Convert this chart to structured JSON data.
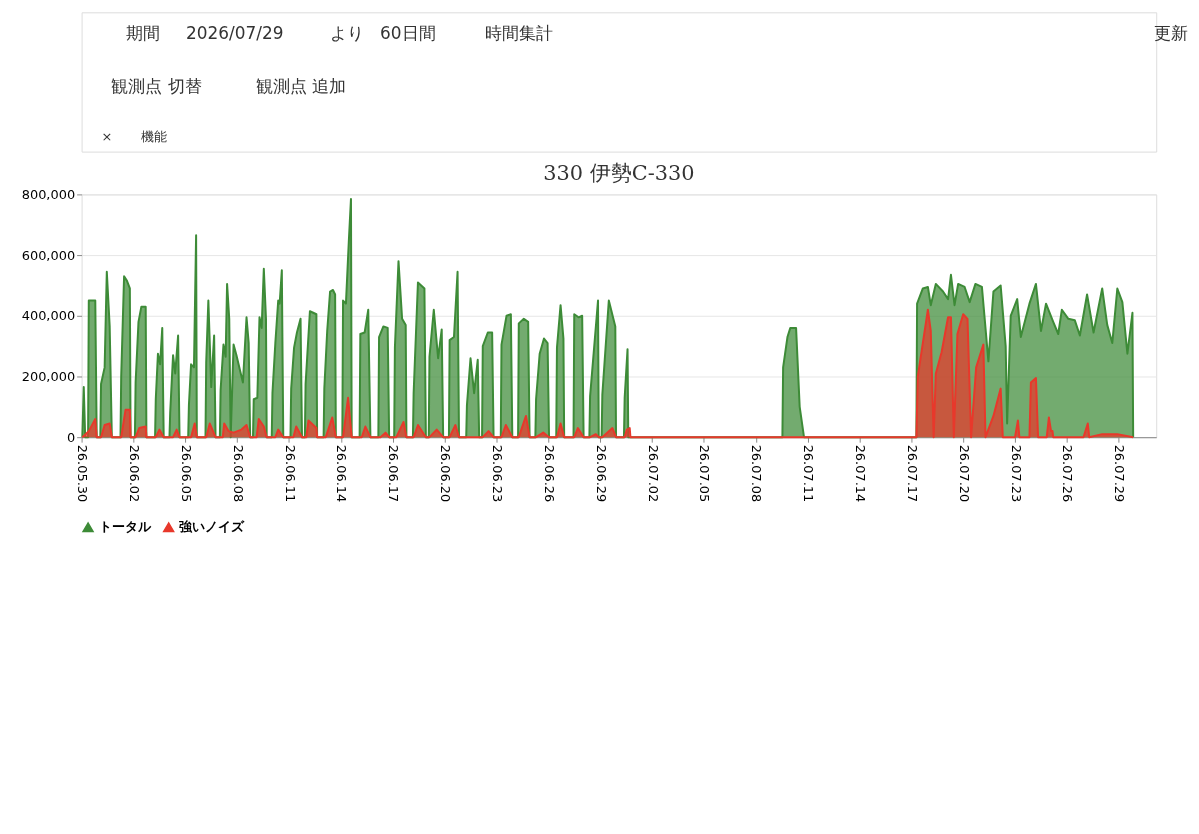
{
  "chart_data": [
    {
      "type": "other",
      "annotations": [
        "期間",
        "2026/07/29",
        "より",
        "60日間",
        "時間集計",
        "更新",
        "観測点 切替",
        "観測点 追加",
        "×",
        "機能"
      ]
    },
    {
      "type": "area",
      "title": "330 伊勢C-330",
      "legend": "bottom",
      "grid": "y",
      "xlim": [
        "2026-05-30",
        "2026-07-31T04:00"
      ],
      "xticks": [
        {
          "value": "2026-05-30",
          "label": "26.05.30"
        },
        {
          "value": "2026-06-02",
          "label": "26.06.02"
        },
        {
          "value": "2026-06-05",
          "label": "26.06.05"
        },
        {
          "value": "2026-06-08",
          "label": "26.06.08"
        },
        {
          "value": "2026-06-11",
          "label": "26.06.11"
        },
        {
          "value": "2026-06-14",
          "label": "26.06.14"
        },
        {
          "value": "2026-06-17",
          "label": "26.06.17"
        },
        {
          "value": "2026-06-20",
          "label": "26.06.20"
        },
        {
          "value": "2026-06-23",
          "label": "26.06.23"
        },
        {
          "value": "2026-06-26",
          "label": "26.06.26"
        },
        {
          "value": "2026-06-29",
          "label": "26.06.29"
        },
        {
          "value": "2026-07-02",
          "label": "26.07.02"
        },
        {
          "value": "2026-07-05",
          "label": "26.07.05"
        },
        {
          "value": "2026-07-08",
          "label": "26.07.08"
        },
        {
          "value": "2026-07-11",
          "label": "26.07.11"
        },
        {
          "value": "2026-07-14",
          "label": "26.07.14"
        },
        {
          "value": "2026-07-17",
          "label": "26.07.17"
        },
        {
          "value": "2026-07-20",
          "label": "26.07.20"
        },
        {
          "value": "2026-07-23",
          "label": "26.07.23"
        },
        {
          "value": "2026-07-26",
          "label": "26.07.26"
        },
        {
          "value": "2026-07-29",
          "label": "26.07.29"
        }
      ],
      "ylim": [
        0,
        800000
      ],
      "yticks": [
        0,
        {
          "value": 200000,
          "label": "200,000"
        },
        {
          "value": 400000,
          "label": "400,000"
        },
        {
          "value": 600000,
          "label": "600,000"
        },
        {
          "value": 800000,
          "label": "800,000"
        }
      ],
      "series": [
        {
          "name": "トータル",
          "color": "#3d8b37",
          "x": [
            "2026-05-30T01:00",
            "2026-05-30T03:00",
            "2026-05-30T05:00",
            "2026-05-30T09:00",
            "2026-05-30T10:00",
            "2026-05-30T19:00",
            "2026-05-30T21:00",
            "2026-05-31T02:00",
            "2026-05-31T03:00",
            "2026-05-31T08:00",
            "2026-05-31T11:00",
            "2026-05-31T15:00",
            "2026-05-31T18:00",
            "2026-06-01T06:00",
            "2026-06-01T07:00",
            "2026-06-01T11:00",
            "2026-06-01T15:00",
            "2026-06-01T19:00",
            "2026-06-01T20:00",
            "2026-06-02T02:00",
            "2026-06-02T03:00",
            "2026-06-02T07:00",
            "2026-06-02T11:00",
            "2026-06-02T17:00",
            "2026-06-02T18:00",
            "2026-06-03T06:00",
            "2026-06-03T07:00",
            "2026-06-03T10:00",
            "2026-06-03T13:00",
            "2026-06-03T16:00",
            "2026-06-03T18:00",
            "2026-06-04T02:00",
            "2026-06-04T03:00",
            "2026-06-04T07:00",
            "2026-06-04T10:00",
            "2026-06-04T14:00",
            "2026-06-04T16:00",
            "2026-06-05T04:00",
            "2026-06-05T05:00",
            "2026-06-05T08:00",
            "2026-06-05T12:00",
            "2026-06-05T15:00",
            "2026-06-05T16:00",
            "2026-06-06T04:00",
            "2026-06-06T05:00",
            "2026-06-06T08:00",
            "2026-06-06T12:00",
            "2026-06-06T16:00",
            "2026-06-06T18:00",
            "2026-06-07T00:00",
            "2026-06-07T01:00",
            "2026-06-07T05:00",
            "2026-06-07T08:00",
            "2026-06-07T10:00",
            "2026-06-07T13:00",
            "2026-06-07T15:00",
            "2026-06-07T19:00",
            "2026-06-07T23:00",
            "2026-06-08T04:00",
            "2026-06-08T08:00",
            "2026-06-08T13:00",
            "2026-06-08T16:00",
            "2026-06-08T18:00",
            "2026-06-08T22:00",
            "2026-06-08T23:00",
            "2026-06-09T04:00",
            "2026-06-09T07:00",
            "2026-06-09T10:00",
            "2026-06-09T13:00",
            "2026-06-09T16:00",
            "2026-06-09T17:00",
            "2026-06-10T00:00",
            "2026-06-10T01:00",
            "2026-06-10T05:00",
            "2026-06-10T09:00",
            "2026-06-10T11:00",
            "2026-06-10T14:00",
            "2026-06-10T16:00",
            "2026-06-11T02:00",
            "2026-06-11T03:00",
            "2026-06-11T07:00",
            "2026-06-11T11:00",
            "2026-06-11T16:00",
            "2026-06-11T18:00",
            "2026-06-11T22:00",
            "2026-06-11T23:00",
            "2026-06-12T05:00",
            "2026-06-12T14:00",
            "2026-06-12T15:00",
            "2026-06-13T00:00",
            "2026-06-13T01:00",
            "2026-06-13T05:00",
            "2026-06-13T09:00",
            "2026-06-13T13:00",
            "2026-06-13T16:00",
            "2026-06-13T17:00",
            "2026-06-14T02:00",
            "2026-06-14T03:00",
            "2026-06-14T07:00",
            "2026-06-14T11:00",
            "2026-06-14T14:00",
            "2026-06-14T15:00",
            "2026-06-15T02:00",
            "2026-06-15T03:00",
            "2026-06-15T09:00",
            "2026-06-15T14:00",
            "2026-06-15T17:00",
            "2026-06-16T04:00",
            "2026-06-16T05:00",
            "2026-06-16T11:00",
            "2026-06-16T17:00",
            "2026-06-16T19:00",
            "2026-06-17T02:00",
            "2026-06-17T03:00",
            "2026-06-17T08:00",
            "2026-06-17T13:00",
            "2026-06-17T18:00",
            "2026-06-17T19:00",
            "2026-06-18T04:00",
            "2026-06-18T05:00",
            "2026-06-18T11:00",
            "2026-06-18T20:00",
            "2026-06-18T22:00",
            "2026-06-19T02:00",
            "2026-06-19T03:00",
            "2026-06-19T09:00",
            "2026-06-19T15:00",
            "2026-06-19T20:00",
            "2026-06-19T22:00",
            "2026-06-20T06:00",
            "2026-06-20T07:00",
            "2026-06-20T13:00",
            "2026-06-20T18:00",
            "2026-06-20T20:00",
            "2026-06-21T06:00",
            "2026-06-21T07:00",
            "2026-06-21T12:00",
            "2026-06-21T17:00",
            "2026-06-21T22:00",
            "2026-06-22T00:00",
            "2026-06-22T04:00",
            "2026-06-22T05:00",
            "2026-06-22T12:00",
            "2026-06-22T18:00",
            "2026-06-22T20:00",
            "2026-06-23T06:00",
            "2026-06-23T07:00",
            "2026-06-23T14:00",
            "2026-06-23T20:00",
            "2026-06-23T22:00",
            "2026-06-24T06:00",
            "2026-06-24T07:00",
            "2026-06-24T14:00",
            "2026-06-24T20:00",
            "2026-06-24T22:00",
            "2026-06-25T06:00",
            "2026-06-25T07:00",
            "2026-06-25T12:00",
            "2026-06-25T18:00",
            "2026-06-25T23:00",
            "2026-06-26T01:00",
            "2026-06-26T11:00",
            "2026-06-26T12:00",
            "2026-06-26T17:00",
            "2026-06-26T21:00",
            "2026-06-26T22:00",
            "2026-06-27T11:00",
            "2026-06-27T12:00",
            "2026-06-27T18:00",
            "2026-06-27T23:00",
            "2026-06-28T01:00",
            "2026-06-28T09:00",
            "2026-06-28T10:00",
            "2026-06-28T21:00",
            "2026-06-28T22:00",
            "2026-06-29T02:00",
            "2026-06-29T03:00",
            "2026-06-29T12:00",
            "2026-06-29T21:00",
            "2026-06-29T22:00",
            "2026-06-30T09:00",
            "2026-06-30T10:00",
            "2026-06-30T14:00",
            "2026-06-30T15:00",
            "2026-07-09T13:00",
            "2026-07-09T14:00",
            "2026-07-09T20:00",
            "2026-07-10T00:00",
            "2026-07-10T08:00",
            "2026-07-10T13:00",
            "2026-07-10T19:00",
            "2026-07-17T07:00",
            "2026-07-17T08:00",
            "2026-07-17T16:00",
            "2026-07-17T23:00",
            "2026-07-18T03:00",
            "2026-07-18T10:00",
            "2026-07-18T20:00",
            "2026-07-19T03:00",
            "2026-07-19T07:00",
            "2026-07-19T12:00",
            "2026-07-19T17:00",
            "2026-07-20T02:00",
            "2026-07-20T09:00",
            "2026-07-20T17:00",
            "2026-07-21T02:00",
            "2026-07-21T11:00",
            "2026-07-21T18:00",
            "2026-07-22T04:00",
            "2026-07-22T11:00",
            "2026-07-22T13:00",
            "2026-07-22T18:00",
            "2026-07-23T03:00",
            "2026-07-23T08:00",
            "2026-07-23T20:00",
            "2026-07-24T05:00",
            "2026-07-24T12:00",
            "2026-07-24T19:00",
            "2026-07-25T05:00",
            "2026-07-25T12:00",
            "2026-07-25T17:00",
            "2026-07-26T02:00",
            "2026-07-26T11:00",
            "2026-07-26T18:00",
            "2026-07-27T04:00",
            "2026-07-27T13:00",
            "2026-07-28T01:00",
            "2026-07-28T08:00",
            "2026-07-28T15:00",
            "2026-07-28T22:00",
            "2026-07-29T05:00",
            "2026-07-29T12:00",
            "2026-07-29T19:00",
            "2026-07-29T20:00"
          ],
          "values": [
            0,
            165000,
            0,
            0,
            450000,
            450000,
            0,
            0,
            175000,
            230000,
            545000,
            365000,
            0,
            0,
            200000,
            530000,
            515000,
            490000,
            0,
            0,
            180000,
            380000,
            430000,
            430000,
            0,
            0,
            125000,
            275000,
            240000,
            360000,
            0,
            0,
            80000,
            270000,
            210000,
            335000,
            0,
            0,
            105000,
            240000,
            230000,
            665000,
            0,
            0,
            245000,
            450000,
            165000,
            335000,
            0,
            0,
            155000,
            305000,
            265000,
            505000,
            390000,
            0,
            305000,
            270000,
            220000,
            180000,
            395000,
            310000,
            0,
            0,
            125000,
            130000,
            395000,
            360000,
            555000,
            390000,
            0,
            0,
            145000,
            310000,
            450000,
            440000,
            550000,
            0,
            0,
            160000,
            295000,
            345000,
            390000,
            0,
            0,
            175000,
            415000,
            405000,
            0,
            0,
            160000,
            350000,
            480000,
            485000,
            470000,
            0,
            0,
            450000,
            440000,
            645000,
            785000,
            0,
            0,
            340000,
            345000,
            420000,
            0,
            0,
            330000,
            365000,
            360000,
            0,
            0,
            295000,
            580000,
            390000,
            370000,
            0,
            0,
            145000,
            510000,
            490000,
            0,
            0,
            265000,
            420000,
            260000,
            355000,
            0,
            0,
            320000,
            330000,
            545000,
            0,
            0,
            105000,
            260000,
            145000,
            255000,
            0,
            0,
            300000,
            345000,
            345000,
            0,
            0,
            305000,
            400000,
            405000,
            0,
            0,
            375000,
            390000,
            380000,
            0,
            0,
            125000,
            275000,
            325000,
            310000,
            0,
            0,
            295000,
            435000,
            325000,
            0,
            0,
            405000,
            395000,
            400000,
            0,
            0,
            135000,
            450000,
            0,
            0,
            140000,
            450000,
            365000,
            0,
            0,
            130000,
            290000,
            0,
            0,
            230000,
            330000,
            360000,
            360000,
            100000,
            0,
            0,
            440000,
            490000,
            495000,
            435000,
            505000,
            480000,
            455000,
            535000,
            435000,
            505000,
            495000,
            445000,
            505000,
            495000,
            250000,
            480000,
            500000,
            300000,
            45000,
            400000,
            455000,
            330000,
            440000,
            505000,
            350000,
            440000,
            380000,
            340000,
            420000,
            390000,
            385000,
            335000,
            470000,
            345000,
            490000,
            370000,
            310000,
            490000,
            445000,
            275000,
            410000,
            0
          ]
        },
        {
          "name": "強いノイズ",
          "color": "#e8382b",
          "x": [
            "2026-05-30T01:00",
            "2026-05-30T10:00",
            "2026-05-30T19:00",
            "2026-05-30T21:00",
            "2026-05-31T03:00",
            "2026-05-31T08:00",
            "2026-05-31T15:00",
            "2026-05-31T18:00",
            "2026-06-01T07:00",
            "2026-06-01T13:00",
            "2026-06-01T19:00",
            "2026-06-01T20:00",
            "2026-06-02T03:00",
            "2026-06-02T08:00",
            "2026-06-02T17:00",
            "2026-06-02T18:00",
            "2026-06-03T07:00",
            "2026-06-03T12:00",
            "2026-06-03T18:00",
            "2026-06-04T07:00",
            "2026-06-04T12:00",
            "2026-06-04T16:00",
            "2026-06-05T08:00",
            "2026-06-05T13:00",
            "2026-06-05T16:00",
            "2026-06-06T05:00",
            "2026-06-06T10:00",
            "2026-06-06T18:00",
            "2026-06-07T04:00",
            "2026-06-07T06:00",
            "2026-06-07T12:00",
            "2026-06-07T19:00",
            "2026-06-08T06:00",
            "2026-06-08T13:00",
            "2026-06-08T18:00",
            "2026-06-09T03:00",
            "2026-06-09T06:00",
            "2026-06-09T13:00",
            "2026-06-09T17:00",
            "2026-06-10T05:00",
            "2026-06-10T09:00",
            "2026-06-10T16:00",
            "2026-06-11T06:00",
            "2026-06-11T10:00",
            "2026-06-11T18:00",
            "2026-06-12T00:00",
            "2026-06-12T03:00",
            "2026-06-12T14:00",
            "2026-06-12T15:00",
            "2026-06-13T03:00",
            "2026-06-13T12:00",
            "2026-06-13T17:00",
            "2026-06-14T03:00",
            "2026-06-14T10:00",
            "2026-06-14T15:00",
            "2026-06-15T05:00",
            "2026-06-15T10:00",
            "2026-06-15T17:00",
            "2026-06-16T07:00",
            "2026-06-16T14:00",
            "2026-06-16T19:00",
            "2026-06-17T05:00",
            "2026-06-17T15:00",
            "2026-06-17T19:00",
            "2026-06-18T05:00",
            "2026-06-18T11:00",
            "2026-06-18T22:00",
            "2026-06-19T03:00",
            "2026-06-19T13:00",
            "2026-06-19T22:00",
            "2026-06-20T07:00",
            "2026-06-20T15:00",
            "2026-06-20T20:00",
            "2026-06-22T05:00",
            "2026-06-22T13:00",
            "2026-06-22T20:00",
            "2026-06-23T07:00",
            "2026-06-23T13:00",
            "2026-06-23T22:00",
            "2026-06-24T07:00",
            "2026-06-24T17:00",
            "2026-06-24T22:00",
            "2026-06-25T07:00",
            "2026-06-25T17:00",
            "2026-06-26T01:00",
            "2026-06-26T12:00",
            "2026-06-26T17:00",
            "2026-06-26T22:00",
            "2026-06-27T12:00",
            "2026-06-27T17:00",
            "2026-06-28T01:00",
            "2026-06-28T10:00",
            "2026-06-28T18:00",
            "2026-06-28T22:00",
            "2026-06-29T03:00",
            "2026-06-29T17:00",
            "2026-06-29T22:00",
            "2026-06-30T10:00",
            "2026-06-30T13:00",
            "2026-06-30T17:00",
            "2026-06-30T18:00",
            "2026-07-17T07:00",
            "2026-07-17T09:00",
            "2026-07-17T23:00",
            "2026-07-18T03:00",
            "2026-07-18T07:00",
            "2026-07-18T10:00",
            "2026-07-18T18:00",
            "2026-07-19T03:00",
            "2026-07-19T07:00",
            "2026-07-19T11:00",
            "2026-07-19T16:00",
            "2026-07-20T00:00",
            "2026-07-20T06:00",
            "2026-07-20T11:00",
            "2026-07-20T18:00",
            "2026-07-21T04:00",
            "2026-07-21T07:00",
            "2026-07-21T18:00",
            "2026-07-22T04:00",
            "2026-07-22T07:00",
            "2026-07-23T00:00",
            "2026-07-23T04:00",
            "2026-07-23T06:00",
            "2026-07-23T20:00",
            "2026-07-23T22:00",
            "2026-07-24T05:00",
            "2026-07-24T08:00",
            "2026-07-24T20:00",
            "2026-07-24T23:00",
            "2026-07-25T02:00",
            "2026-07-25T04:00",
            "2026-07-25T05:00",
            "2026-07-26T23:00",
            "2026-07-27T05:00",
            "2026-07-27T07:00",
            "2026-07-28T01:00",
            "2026-07-28T22:00",
            "2026-07-29T20:00"
          ],
          "values": [
            0,
            20000,
            60000,
            0,
            0,
            40000,
            45000,
            0,
            0,
            90000,
            90000,
            0,
            0,
            30000,
            35000,
            0,
            0,
            25000,
            0,
            0,
            25000,
            0,
            0,
            45000,
            0,
            0,
            45000,
            0,
            0,
            45000,
            20000,
            15000,
            25000,
            40000,
            0,
            0,
            60000,
            35000,
            0,
            0,
            25000,
            0,
            0,
            35000,
            0,
            0,
            55000,
            30000,
            0,
            0,
            65000,
            0,
            0,
            130000,
            0,
            0,
            35000,
            0,
            0,
            15000,
            0,
            0,
            50000,
            0,
            0,
            40000,
            0,
            0,
            25000,
            0,
            0,
            40000,
            0,
            0,
            20000,
            0,
            0,
            40000,
            0,
            0,
            70000,
            0,
            0,
            15000,
            0,
            0,
            45000,
            0,
            0,
            30000,
            0,
            0,
            10000,
            0,
            0,
            30000,
            0,
            0,
            25000,
            30000,
            0,
            0,
            200000,
            420000,
            350000,
            0,
            210000,
            280000,
            395000,
            395000,
            0,
            340000,
            405000,
            390000,
            0,
            230000,
            305000,
            0,
            70000,
            160000,
            0,
            0,
            55000,
            0,
            0,
            180000,
            195000,
            0,
            0,
            65000,
            20000,
            20000,
            0,
            0,
            45000,
            0,
            10000,
            10000,
            0
          ]
        }
      ]
    }
  ]
}
